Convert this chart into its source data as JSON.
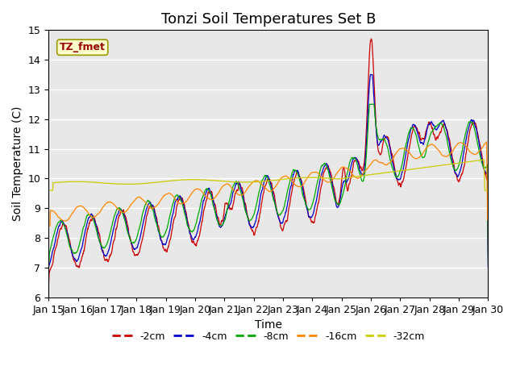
{
  "title": "Tonzi Soil Temperatures Set B",
  "xlabel": "Time",
  "ylabel": "Soil Temperature (C)",
  "ylim": [
    6.0,
    15.0
  ],
  "yticks": [
    6.0,
    7.0,
    8.0,
    9.0,
    10.0,
    11.0,
    12.0,
    13.0,
    14.0,
    15.0
  ],
  "xtick_labels": [
    "Jan 15",
    "Jan 16",
    "Jan 17",
    "Jan 18",
    "Jan 19",
    "Jan 20",
    "Jan 21",
    "Jan 22",
    "Jan 23",
    "Jan 24",
    "Jan 25",
    "Jan 26",
    "Jan 27",
    "Jan 28",
    "Jan 29",
    "Jan 30"
  ],
  "legend_label": "TZ_fmet",
  "series_labels": [
    "-2cm",
    "-4cm",
    "-8cm",
    "-16cm",
    "-32cm"
  ],
  "series_colors": [
    "#cc0000",
    "#0000cc",
    "#00aa00",
    "#ff8800",
    "#cccc00"
  ],
  "background_color": "#e8e8e8",
  "title_fontsize": 13,
  "axis_label_fontsize": 10,
  "tick_fontsize": 9,
  "legend_fontsize": 9
}
